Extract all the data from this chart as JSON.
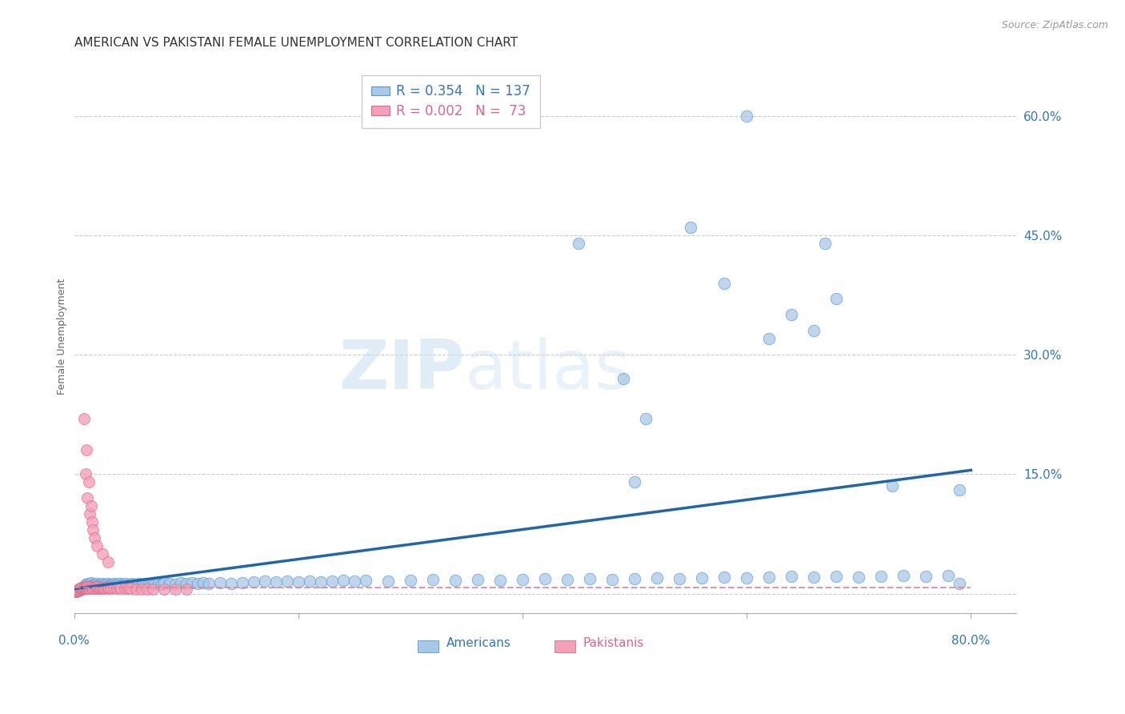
{
  "title": "AMERICAN VS PAKISTANI FEMALE UNEMPLOYMENT CORRELATION CHART",
  "source": "Source: ZipAtlas.com",
  "ylabel": "Female Unemployment",
  "yticks": [
    0.0,
    0.15,
    0.3,
    0.45,
    0.6
  ],
  "xlim": [
    0.0,
    0.84
  ],
  "ylim": [
    -0.025,
    0.67
  ],
  "legend_blue_r": "0.354",
  "legend_blue_n": "137",
  "legend_pink_r": "0.002",
  "legend_pink_n": "73",
  "color_blue_fill": "#a8c8e8",
  "color_blue_edge": "#5599cc",
  "color_pink_fill": "#f4a0b8",
  "color_pink_edge": "#e06888",
  "color_blue_line": "#2266aa",
  "color_pink_line": "#dd8899",
  "color_text_blue": "#3377bb",
  "color_text_pink": "#dd6688",
  "color_grid": "#cccccc",
  "background_color": "#ffffff",
  "watermark_zip": "ZIP",
  "watermark_atlas": "atlas",
  "title_fontsize": 11,
  "source_fontsize": 9,
  "ylabel_fontsize": 9,
  "tick_fontsize": 11,
  "legend_fontsize": 12,
  "blue_x": [
    0.002,
    0.003,
    0.004,
    0.005,
    0.005,
    0.006,
    0.007,
    0.008,
    0.009,
    0.01,
    0.01,
    0.01,
    0.011,
    0.012,
    0.012,
    0.013,
    0.013,
    0.014,
    0.015,
    0.015,
    0.015,
    0.016,
    0.017,
    0.018,
    0.018,
    0.019,
    0.02,
    0.02,
    0.021,
    0.022,
    0.023,
    0.024,
    0.025,
    0.025,
    0.026,
    0.027,
    0.028,
    0.03,
    0.03,
    0.031,
    0.032,
    0.033,
    0.034,
    0.035,
    0.036,
    0.037,
    0.038,
    0.039,
    0.04,
    0.041,
    0.042,
    0.043,
    0.044,
    0.045,
    0.046,
    0.047,
    0.048,
    0.05,
    0.051,
    0.052,
    0.053,
    0.055,
    0.057,
    0.058,
    0.06,
    0.062,
    0.064,
    0.066,
    0.068,
    0.07,
    0.072,
    0.075,
    0.078,
    0.08,
    0.085,
    0.09,
    0.095,
    0.1,
    0.105,
    0.11,
    0.115,
    0.12,
    0.13,
    0.14,
    0.15,
    0.16,
    0.17,
    0.18,
    0.19,
    0.2,
    0.21,
    0.22,
    0.23,
    0.24,
    0.25,
    0.26,
    0.28,
    0.3,
    0.32,
    0.34,
    0.36,
    0.38,
    0.4,
    0.42,
    0.44,
    0.46,
    0.48,
    0.5,
    0.52,
    0.54,
    0.56,
    0.58,
    0.6,
    0.62,
    0.64,
    0.66,
    0.68,
    0.7,
    0.72,
    0.74,
    0.76,
    0.78,
    0.79,
    0.49,
    0.51,
    0.62,
    0.68,
    0.73,
    0.45,
    0.55,
    0.58,
    0.6,
    0.64,
    0.66,
    0.67,
    0.79,
    0.5
  ],
  "blue_y": [
    0.003,
    0.004,
    0.005,
    0.005,
    0.006,
    0.006,
    0.007,
    0.007,
    0.008,
    0.008,
    0.01,
    0.012,
    0.01,
    0.009,
    0.012,
    0.01,
    0.013,
    0.011,
    0.01,
    0.012,
    0.014,
    0.011,
    0.01,
    0.012,
    0.009,
    0.011,
    0.01,
    0.013,
    0.011,
    0.01,
    0.012,
    0.011,
    0.01,
    0.013,
    0.011,
    0.01,
    0.012,
    0.01,
    0.013,
    0.011,
    0.01,
    0.012,
    0.011,
    0.01,
    0.013,
    0.011,
    0.012,
    0.01,
    0.011,
    0.013,
    0.01,
    0.012,
    0.011,
    0.01,
    0.013,
    0.011,
    0.01,
    0.012,
    0.011,
    0.013,
    0.01,
    0.012,
    0.011,
    0.013,
    0.011,
    0.012,
    0.013,
    0.011,
    0.012,
    0.013,
    0.012,
    0.013,
    0.012,
    0.014,
    0.013,
    0.012,
    0.014,
    0.013,
    0.014,
    0.013,
    0.014,
    0.013,
    0.014,
    0.013,
    0.014,
    0.015,
    0.016,
    0.015,
    0.016,
    0.015,
    0.016,
    0.015,
    0.016,
    0.017,
    0.016,
    0.017,
    0.016,
    0.017,
    0.018,
    0.017,
    0.018,
    0.017,
    0.018,
    0.019,
    0.018,
    0.019,
    0.018,
    0.019,
    0.02,
    0.019,
    0.02,
    0.021,
    0.02,
    0.021,
    0.022,
    0.021,
    0.022,
    0.021,
    0.022,
    0.023,
    0.022,
    0.023,
    0.013,
    0.27,
    0.22,
    0.32,
    0.37,
    0.135,
    0.44,
    0.46,
    0.39,
    0.6,
    0.35,
    0.33,
    0.44,
    0.13,
    0.14
  ],
  "pink_x": [
    0.001,
    0.002,
    0.002,
    0.003,
    0.003,
    0.004,
    0.004,
    0.005,
    0.005,
    0.006,
    0.006,
    0.007,
    0.007,
    0.008,
    0.008,
    0.009,
    0.009,
    0.01,
    0.01,
    0.01,
    0.011,
    0.011,
    0.012,
    0.012,
    0.013,
    0.013,
    0.014,
    0.015,
    0.015,
    0.016,
    0.017,
    0.018,
    0.019,
    0.02,
    0.02,
    0.021,
    0.022,
    0.023,
    0.024,
    0.025,
    0.026,
    0.027,
    0.028,
    0.03,
    0.031,
    0.033,
    0.035,
    0.038,
    0.04,
    0.042,
    0.045,
    0.048,
    0.05,
    0.055,
    0.06,
    0.065,
    0.07,
    0.08,
    0.09,
    0.1,
    0.009,
    0.01,
    0.011,
    0.012,
    0.013,
    0.014,
    0.015,
    0.016,
    0.017,
    0.018,
    0.02,
    0.025,
    0.03
  ],
  "pink_y": [
    0.003,
    0.003,
    0.004,
    0.004,
    0.005,
    0.005,
    0.006,
    0.006,
    0.007,
    0.007,
    0.008,
    0.007,
    0.008,
    0.007,
    0.008,
    0.007,
    0.008,
    0.007,
    0.008,
    0.009,
    0.007,
    0.009,
    0.007,
    0.009,
    0.007,
    0.009,
    0.007,
    0.008,
    0.009,
    0.008,
    0.007,
    0.008,
    0.007,
    0.008,
    0.009,
    0.007,
    0.008,
    0.007,
    0.008,
    0.007,
    0.008,
    0.007,
    0.008,
    0.007,
    0.008,
    0.007,
    0.008,
    0.007,
    0.008,
    0.007,
    0.007,
    0.007,
    0.007,
    0.006,
    0.006,
    0.006,
    0.006,
    0.006,
    0.006,
    0.006,
    0.22,
    0.15,
    0.18,
    0.12,
    0.14,
    0.1,
    0.11,
    0.09,
    0.08,
    0.07,
    0.06,
    0.05,
    0.04
  ],
  "blue_line_x": [
    0.0,
    0.8
  ],
  "blue_line_y": [
    0.006,
    0.155
  ],
  "pink_line_x": [
    0.0,
    0.8
  ],
  "pink_line_y": [
    0.008,
    0.008
  ]
}
